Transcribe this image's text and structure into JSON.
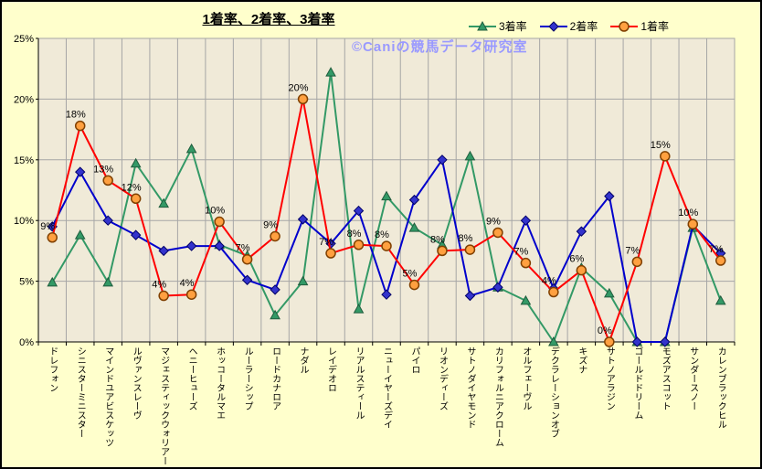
{
  "title": "1着率、2着率、3着率",
  "watermark": "©Caniの競馬データ研究室",
  "colors": {
    "page_bg": "#FFFFCC",
    "plot_bg": "#F0EAD8",
    "grid": "#A6A6A6",
    "axis": "#000000",
    "watermark": "#9999FF",
    "series_3rd": "#339966",
    "series_2nd": "#0000CC",
    "series_1st": "#FF0000",
    "marker_1st_fill": "#FFA040"
  },
  "legend": [
    {
      "label": "3着率",
      "marker": "triangle",
      "color": "#339966"
    },
    {
      "label": "2着率",
      "marker": "diamond",
      "color": "#0000CC"
    },
    {
      "label": "1着率",
      "marker": "circle",
      "color": "#FF0000"
    }
  ],
  "chart_data": {
    "type": "line",
    "title": "1着率、2着率、3着率",
    "xlabel": "",
    "ylabel": "",
    "ylim": [
      0,
      25
    ],
    "yticks": [
      0,
      5,
      10,
      15,
      20,
      25
    ],
    "ytick_labels": [
      "0%",
      "5%",
      "10%",
      "15%",
      "20%",
      "25%"
    ],
    "grid": true,
    "legend_position": "top-right",
    "categories": [
      "ドレフォン",
      "シニスターミニスター",
      "マインドユアビスケッツ",
      "ルヴァンスレーヴ",
      "マジェスティックウォリアー",
      "ヘニーヒューズ",
      "ホッコータルマエ",
      "ルーラーシップ",
      "ロードカナロア",
      "ナダル",
      "レイデオロ",
      "リアルスティール",
      "ニューイヤーズデイ",
      "パイロ",
      "リオンディーズ",
      "サトノダイヤモンド",
      "カリフォルニアクローム",
      "オルフェーヴル",
      "デクラレーションオブ",
      "キズナ",
      "サトノアラジン",
      "ゴールドドリーム",
      "モズアスコット",
      "サンダースノー",
      "カレンブラックヒル"
    ],
    "series": [
      {
        "name": "3着率",
        "marker": "triangle",
        "color": "#339966",
        "marker_fill": "#339966",
        "marker_stroke": "#1F5C3D",
        "values": [
          4.9,
          8.8,
          4.9,
          14.7,
          11.4,
          15.9,
          8.0,
          7.1,
          2.2,
          5.0,
          22.2,
          2.7,
          12.0,
          9.4,
          8.0,
          15.3,
          4.5,
          3.4,
          0.0,
          6.1,
          4.0,
          0.0,
          0.0,
          9.4,
          3.4
        ]
      },
      {
        "name": "2着率",
        "marker": "diamond",
        "color": "#0000CC",
        "marker_fill": "#3333CC",
        "marker_stroke": "#000066",
        "values": [
          9.5,
          14.0,
          10.0,
          8.8,
          7.5,
          7.9,
          7.9,
          5.1,
          4.3,
          10.1,
          8.1,
          10.8,
          3.9,
          11.7,
          15.0,
          3.8,
          4.5,
          10.0,
          4.4,
          9.1,
          12.0,
          0.0,
          0.0,
          9.6,
          7.3
        ]
      },
      {
        "name": "1着率",
        "marker": "circle",
        "color": "#FF0000",
        "marker_fill": "#FFA040",
        "marker_stroke": "#804000",
        "values": [
          8.6,
          17.8,
          13.3,
          11.8,
          3.8,
          3.9,
          9.9,
          6.8,
          8.7,
          20.0,
          7.3,
          8.0,
          7.9,
          4.7,
          7.5,
          7.6,
          9.0,
          6.5,
          4.1,
          5.9,
          0.0,
          6.6,
          15.3,
          9.7,
          6.7
        ],
        "point_labels": [
          "9%",
          "18%",
          "13%",
          "12%",
          "4%",
          "4%",
          "10%",
          "7%",
          "9%",
          "20%",
          "7%",
          "8%",
          "8%",
          "5%",
          "8%",
          "8%",
          "9%",
          "7%",
          "4%",
          "6%",
          "0%",
          "7%",
          "15%",
          "10%",
          "7%"
        ]
      }
    ]
  }
}
